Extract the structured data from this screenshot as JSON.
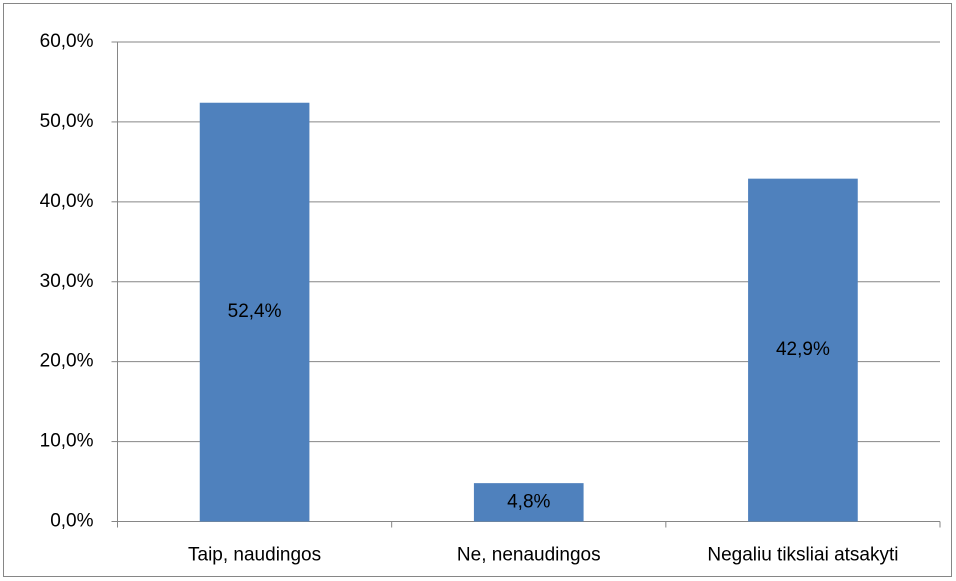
{
  "chart_data": {
    "type": "bar",
    "categories": [
      "Taip, naudingos",
      "Ne, nenaudingos",
      "Negaliu tiksliai atsakyti"
    ],
    "values": [
      52.4,
      4.8,
      42.9
    ],
    "value_labels": [
      "52,4%",
      "4,8%",
      "42,9%"
    ],
    "color": "#4f81bd",
    "ylim": [
      0,
      60
    ],
    "yticks": [
      {
        "value": 0,
        "label": "0,0%"
      },
      {
        "value": 10,
        "label": "10,0%"
      },
      {
        "value": 20,
        "label": "20,0%"
      },
      {
        "value": 30,
        "label": "30,0%"
      },
      {
        "value": 40,
        "label": "40,0%"
      },
      {
        "value": 50,
        "label": "50,0%"
      },
      {
        "value": 60,
        "label": "60,0%"
      }
    ],
    "grid": true
  }
}
